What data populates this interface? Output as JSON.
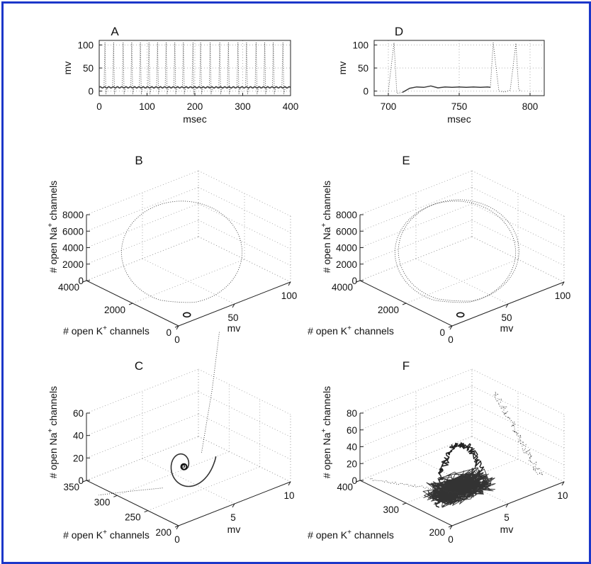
{
  "chart_data": [
    {
      "panel": "A",
      "type": "line",
      "xlabel": "msec",
      "ylabel": "mv",
      "xlim": [
        0,
        400
      ],
      "ylim": [
        -10,
        110
      ],
      "xticks": [
        "0",
        "100",
        "200",
        "300",
        "400"
      ],
      "yticks": [
        "0",
        "50",
        "100"
      ],
      "grid": true,
      "series": [
        {
          "spike_times_ms": [
            12,
            30,
            50,
            68,
            86,
            104,
            122,
            140,
            158,
            176,
            196,
            212,
            232,
            252,
            270,
            290,
            308,
            328,
            346,
            364,
            384
          ],
          "peak": 105,
          "rest": 8
        }
      ]
    },
    {
      "panel": "D",
      "type": "line",
      "xlabel": "msec",
      "ylabel": "mv",
      "xlim": [
        690,
        810
      ],
      "ylim": [
        -10,
        110
      ],
      "xticks": [
        "700",
        "750",
        "800"
      ],
      "yticks": [
        "0",
        "50",
        "100"
      ],
      "grid": true,
      "series": [
        {
          "x": [
            700,
            704,
            706,
            710,
            715,
            720,
            725,
            730,
            735,
            740,
            745,
            750,
            755,
            760,
            765,
            770,
            772,
            774,
            778,
            782,
            786,
            790,
            792,
            794
          ],
          "y": [
            0,
            105,
            -5,
            -3,
            6,
            9,
            8,
            11,
            7,
            9,
            8,
            9,
            8,
            9,
            8,
            9,
            8,
            105,
            0,
            -2,
            2,
            104,
            3,
            0
          ]
        }
      ]
    },
    {
      "panel": "B",
      "type": "line3d",
      "xlabel": "mv",
      "ylabel": "# open K⁺ channels",
      "zlabel": "# open Na⁺ channels",
      "xticks": [
        "0",
        "50",
        "100"
      ],
      "yticks": [
        "0",
        "2000",
        "4000"
      ],
      "zticks": [
        "0",
        "2000",
        "4000",
        "6000",
        "8000"
      ],
      "grid": true
    },
    {
      "panel": "E",
      "type": "line3d",
      "xlabel": "mv",
      "ylabel": "# open K⁺ channels",
      "zlabel": "# open Na⁺ channels",
      "xticks": [
        "0",
        "50",
        "100"
      ],
      "yticks": [
        "0",
        "2000",
        "4000"
      ],
      "zticks": [
        "0",
        "2000",
        "4000",
        "6000",
        "8000"
      ],
      "grid": true
    },
    {
      "panel": "C",
      "type": "line3d",
      "xlabel": "mv",
      "ylabel": "# open K⁺ channels",
      "zlabel": "# open Na⁺ channels",
      "xticks": [
        "0",
        "5",
        "10"
      ],
      "yticks": [
        "200",
        "250",
        "300",
        "350"
      ],
      "zticks": [
        "0",
        "20",
        "40",
        "60"
      ],
      "grid": true
    },
    {
      "panel": "F",
      "type": "line3d",
      "xlabel": "mv",
      "ylabel": "# open K⁺ channels",
      "zlabel": "# open Na⁺ channels",
      "xticks": [
        "0",
        "5",
        "10"
      ],
      "yticks": [
        "200",
        "300",
        "400"
      ],
      "zticks": [
        "0",
        "20",
        "40",
        "60",
        "80"
      ],
      "grid": true
    }
  ],
  "colors": {
    "frame": "#1c37c9",
    "trace": "#3a3a3a",
    "grid": "#9a9a9a"
  }
}
